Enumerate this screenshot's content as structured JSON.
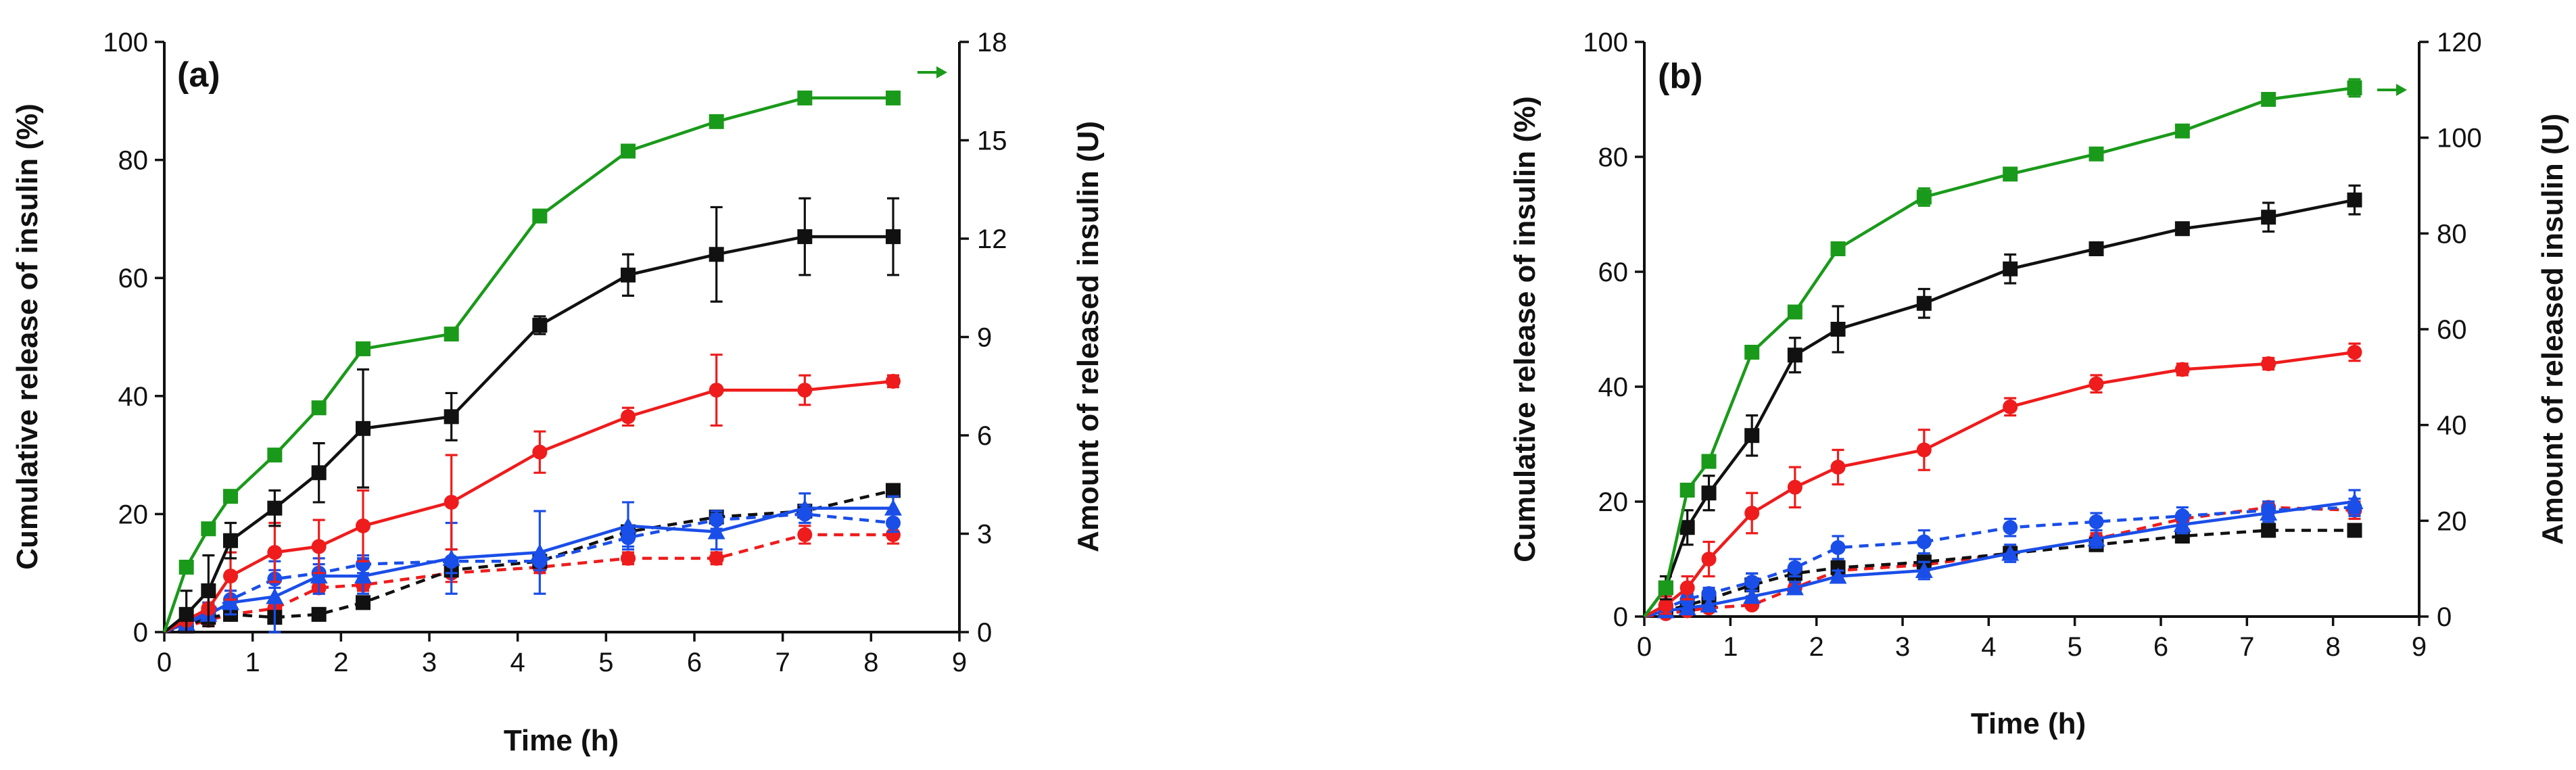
{
  "chart_data": [
    {
      "type": "line",
      "panel_label": "(a)",
      "xlabel": "Time (h)",
      "ylabel": "Cumulative release of insulin (%)",
      "y2label": "Amount of released insulin (U)",
      "xlim": [
        0,
        9
      ],
      "ylim": [
        0,
        100
      ],
      "y2lim": [
        0,
        18
      ],
      "xticks": [
        0,
        1,
        2,
        3,
        4,
        5,
        6,
        7,
        8,
        9
      ],
      "yticks": [
        0,
        20,
        40,
        60,
        80,
        100
      ],
      "y2ticks": [
        0,
        3,
        6,
        9,
        12,
        15,
        18
      ],
      "grid": false,
      "series": [
        {
          "color": "#1a9a1a",
          "marker": "square",
          "dash": "solid",
          "axis": "right_arrow",
          "x": [
            0,
            0.25,
            0.5,
            0.75,
            1.25,
            1.75,
            2.25,
            3.25,
            4.25,
            5.25,
            6.25,
            7.25,
            8.25
          ],
          "y": [
            0,
            11,
            17.5,
            23,
            30,
            38,
            48,
            50.5,
            70.5,
            81.5,
            86.5,
            90.5,
            90.5
          ],
          "err": [
            0,
            0.5,
            0.5,
            0.5,
            0.5,
            0.5,
            0.5,
            0.5,
            0.5,
            0.5,
            0.5,
            0.5,
            0.5
          ]
        },
        {
          "color": "#111111",
          "marker": "square",
          "dash": "solid",
          "x": [
            0,
            0.25,
            0.5,
            0.75,
            1.25,
            1.75,
            2.25,
            3.25,
            4.25,
            5.25,
            6.25,
            7.25,
            8.25
          ],
          "y": [
            0,
            3,
            7,
            15.5,
            21,
            27,
            34.5,
            36.5,
            52,
            60.5,
            64,
            67,
            67
          ],
          "err": [
            0,
            4,
            6,
            3,
            3,
            5,
            10,
            4,
            1.5,
            3.5,
            8,
            6.5,
            6.5
          ]
        },
        {
          "color": "#ee1c1c",
          "marker": "circle",
          "dash": "solid",
          "x": [
            0,
            0.25,
            0.5,
            0.75,
            1.25,
            1.75,
            2.25,
            3.25,
            4.25,
            5.25,
            6.25,
            7.25,
            8.25
          ],
          "y": [
            0,
            2,
            4,
            9.5,
            13.5,
            14.5,
            18,
            22,
            30.5,
            36.5,
            41,
            41,
            42.5
          ],
          "err": [
            0,
            2,
            3,
            4,
            5,
            4.5,
            6,
            8,
            3.5,
            1.5,
            6,
            2.5,
            1
          ]
        },
        {
          "color": "#1a4ee8",
          "marker": "triangle",
          "dash": "solid",
          "x": [
            0,
            0.25,
            0.5,
            0.75,
            1.25,
            1.75,
            2.25,
            3.25,
            4.25,
            5.25,
            6.25,
            7.25,
            8.25
          ],
          "y": [
            0,
            1.5,
            3,
            5,
            6,
            9.5,
            9.5,
            12.5,
            13.5,
            18,
            17,
            21,
            21
          ],
          "err": [
            0,
            1.5,
            2,
            2,
            6,
            3,
            3,
            6,
            7,
            4,
            3,
            2.5,
            2
          ]
        },
        {
          "color": "#1a4ee8",
          "marker": "circle",
          "dash": "dashed",
          "x": [
            0,
            0.25,
            0.5,
            0.75,
            1.25,
            1.75,
            2.25,
            3.25,
            4.25,
            5.25,
            6.25,
            7.25,
            8.25
          ],
          "y": [
            0,
            1.5,
            3.5,
            5.5,
            9,
            10,
            11.5,
            12,
            12,
            16,
            19,
            20,
            18.5
          ],
          "err": [
            0,
            1,
            1.5,
            1.5,
            1.5,
            1.5,
            1.5,
            2,
            1.5,
            1.5,
            1.5,
            1.5,
            1.5
          ]
        },
        {
          "color": "#111111",
          "marker": "square",
          "dash": "dashed",
          "x": [
            0,
            0.25,
            0.5,
            0.75,
            1.25,
            1.75,
            2.25,
            3.25,
            4.25,
            5.25,
            6.25,
            7.25,
            8.25
          ],
          "y": [
            0,
            1,
            2.5,
            3,
            2.5,
            3,
            5,
            10.5,
            12,
            17,
            19.5,
            20.5,
            24
          ],
          "err": [
            0,
            0.5,
            0.5,
            0.5,
            0.5,
            0.5,
            1,
            1,
            1,
            1,
            1,
            1,
            1
          ]
        },
        {
          "color": "#ee1c1c",
          "marker": "circle",
          "dash": "dashed",
          "x": [
            0,
            0.25,
            0.5,
            0.75,
            1.25,
            1.75,
            2.25,
            3.25,
            4.25,
            5.25,
            6.25,
            7.25,
            8.25
          ],
          "y": [
            0,
            1,
            2,
            3,
            4,
            7.5,
            8,
            10,
            11,
            12.5,
            12.5,
            16.5,
            16.5
          ],
          "err": [
            0,
            0.5,
            0.5,
            0.5,
            0.5,
            1,
            1,
            1.5,
            1,
            1,
            1,
            1.5,
            1.5
          ]
        }
      ]
    },
    {
      "type": "line",
      "panel_label": "(b)",
      "xlabel": "Time (h)",
      "ylabel": "Cumulative release of insulin (%)",
      "y2label": "Amount of released insulin (U)",
      "xlim": [
        0,
        9
      ],
      "ylim": [
        0,
        100
      ],
      "y2lim": [
        0,
        120
      ],
      "xticks": [
        0,
        1,
        2,
        3,
        4,
        5,
        6,
        7,
        8,
        9
      ],
      "yticks": [
        0,
        20,
        40,
        60,
        80,
        100
      ],
      "y2ticks": [
        0,
        20,
        40,
        60,
        80,
        100,
        120
      ],
      "grid": false,
      "series": [
        {
          "color": "#1a9a1a",
          "marker": "square",
          "dash": "solid",
          "axis": "right_arrow",
          "x": [
            0,
            0.25,
            0.5,
            0.75,
            1.25,
            1.75,
            2.25,
            3.25,
            4.25,
            5.25,
            6.25,
            7.25,
            8.25
          ],
          "y": [
            0,
            5,
            22,
            27,
            46,
            53,
            64,
            73,
            77,
            80.5,
            84.5,
            90,
            92
          ],
          "err": [
            0,
            0.5,
            0.5,
            0.5,
            0.5,
            0.5,
            0.5,
            1.5,
            0.5,
            0.5,
            0.5,
            1,
            1.5
          ]
        },
        {
          "color": "#111111",
          "marker": "square",
          "dash": "solid",
          "x": [
            0,
            0.25,
            0.5,
            0.75,
            1.25,
            1.75,
            2.25,
            3.25,
            4.25,
            5.25,
            6.25,
            7.25,
            8.25
          ],
          "y": [
            0,
            5,
            15.5,
            21.5,
            31.5,
            45.5,
            50,
            54.5,
            60.5,
            64,
            67.5,
            69.5,
            72.5
          ],
          "err": [
            0,
            2,
            3,
            3,
            3.5,
            3,
            4,
            2.5,
            2.5,
            1,
            1,
            2.5,
            2.5
          ]
        },
        {
          "color": "#ee1c1c",
          "marker": "circle",
          "dash": "solid",
          "x": [
            0,
            0.25,
            0.5,
            0.75,
            1.25,
            1.75,
            2.25,
            3.25,
            4.25,
            5.25,
            6.25,
            7.25,
            8.25
          ],
          "y": [
            0,
            2,
            5,
            10,
            18,
            22.5,
            26,
            29,
            36.5,
            40.5,
            43,
            44,
            46
          ],
          "err": [
            0,
            1.5,
            2,
            3,
            3.5,
            3.5,
            3,
            3.5,
            1.5,
            1.5,
            1,
            1,
            1.5
          ]
        },
        {
          "color": "#1a4ee8",
          "marker": "triangle",
          "dash": "solid",
          "x": [
            0,
            0.25,
            0.5,
            0.75,
            1.25,
            1.75,
            2.25,
            3.25,
            4.25,
            5.25,
            6.25,
            7.25,
            8.25
          ],
          "y": [
            0,
            1,
            1.5,
            2,
            3.5,
            5,
            7,
            8,
            11,
            13.5,
            16,
            18,
            20
          ],
          "err": [
            0,
            0.5,
            0.5,
            0.5,
            1,
            1,
            1,
            1.5,
            1.5,
            1.5,
            1.5,
            1.5,
            2
          ]
        },
        {
          "color": "#1a4ee8",
          "marker": "circle",
          "dash": "dashed",
          "x": [
            0,
            0.25,
            0.5,
            0.75,
            1.25,
            1.75,
            2.25,
            3.25,
            4.25,
            5.25,
            6.25,
            7.25,
            8.25
          ],
          "y": [
            0,
            1.5,
            3,
            4,
            6,
            8.5,
            12,
            13,
            15.5,
            16.5,
            17.5,
            18.5,
            19
          ],
          "err": [
            0,
            0.5,
            1,
            1,
            1.5,
            1.5,
            2,
            2,
            1.5,
            1.5,
            1.5,
            1.5,
            1.5
          ]
        },
        {
          "color": "#111111",
          "marker": "square",
          "dash": "dashed",
          "x": [
            0,
            0.25,
            0.5,
            0.75,
            1.25,
            1.75,
            2.25,
            3.25,
            4.25,
            5.25,
            6.25,
            7.25,
            8.25
          ],
          "y": [
            0,
            1,
            2,
            3,
            5.5,
            7.5,
            8.5,
            9.5,
            11,
            12.5,
            14,
            15,
            15
          ],
          "err": [
            0,
            0.5,
            1,
            1,
            2,
            1.5,
            1.5,
            1,
            1,
            1,
            1,
            1,
            1
          ]
        },
        {
          "color": "#ee1c1c",
          "marker": "circle",
          "dash": "dashed",
          "x": [
            0,
            0.25,
            0.5,
            0.75,
            1.25,
            1.75,
            2.25,
            3.25,
            4.25,
            5.25,
            6.25,
            7.25,
            8.25
          ],
          "y": [
            0,
            0.5,
            1,
            1.5,
            2,
            5,
            8,
            9,
            11,
            13.5,
            17,
            19,
            18.5
          ],
          "err": [
            0,
            0.5,
            0.5,
            0.5,
            0.5,
            0.5,
            1,
            1,
            1,
            1,
            1,
            1,
            1.5
          ]
        }
      ]
    }
  ]
}
